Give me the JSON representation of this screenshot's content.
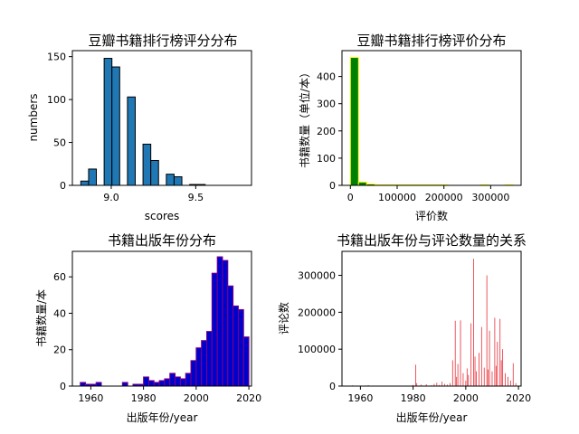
{
  "chart_data": [
    {
      "type": "bar",
      "title": "豆瓣书籍排行榜评分分布",
      "xlabel": "scores",
      "ylabel": "numbers",
      "xlim": [
        8.77,
        9.83
      ],
      "ylim": [
        0,
        157
      ],
      "xticks": [
        9.0,
        9.5
      ],
      "xtick_labels": [
        "9.0",
        "9.5"
      ],
      "yticks": [
        0,
        50,
        100,
        150
      ],
      "ytick_labels": [
        "0",
        "50",
        "100",
        "150"
      ],
      "bar_color": "#1f77b4",
      "edge_color": "#000000",
      "bins": [
        {
          "x0": 8.82,
          "x1": 8.866,
          "value": 5
        },
        {
          "x0": 8.866,
          "x1": 8.912,
          "value": 19
        },
        {
          "x0": 8.958,
          "x1": 9.004,
          "value": 148
        },
        {
          "x0": 9.004,
          "x1": 9.05,
          "value": 138
        },
        {
          "x0": 9.096,
          "x1": 9.142,
          "value": 103
        },
        {
          "x0": 9.188,
          "x1": 9.234,
          "value": 48
        },
        {
          "x0": 9.234,
          "x1": 9.28,
          "value": 29
        },
        {
          "x0": 9.326,
          "x1": 9.372,
          "value": 13
        },
        {
          "x0": 9.372,
          "x1": 9.418,
          "value": 10
        },
        {
          "x0": 9.464,
          "x1": 9.51,
          "value": 1
        },
        {
          "x0": 9.51,
          "x1": 9.556,
          "value": 1
        }
      ]
    },
    {
      "type": "bar",
      "title": "豆瓣书籍排行榜评价分布",
      "xlabel": "评价数",
      "ylabel": "书籍数量（单位/本）",
      "xlim": [
        -18000,
        365000
      ],
      "ylim": [
        0,
        495
      ],
      "xticks": [
        0,
        100000,
        200000,
        300000
      ],
      "xtick_labels": [
        "0",
        "100000",
        "200000",
        "300000"
      ],
      "yticks": [
        0,
        100,
        200,
        300,
        400
      ],
      "ytick_labels": [
        "0",
        "100",
        "200",
        "300",
        "400"
      ],
      "bar_color": "#008000",
      "edge_color": "#ffff00",
      "bins": [
        {
          "x0": 0,
          "x1": 17400,
          "value": 470
        },
        {
          "x0": 17400,
          "x1": 34800,
          "value": 12
        },
        {
          "x0": 34800,
          "x1": 52200,
          "value": 5
        },
        {
          "x0": 52200,
          "x1": 69600,
          "value": 2
        },
        {
          "x0": 69600,
          "x1": 87000,
          "value": 1
        },
        {
          "x0": 87000,
          "x1": 104400,
          "value": 1
        },
        {
          "x0": 104400,
          "x1": 121800,
          "value": 1
        },
        {
          "x0": 121800,
          "x1": 139200,
          "value": 1
        },
        {
          "x0": 139200,
          "x1": 156600,
          "value": 1
        },
        {
          "x0": 156600,
          "x1": 174000,
          "value": 1
        },
        {
          "x0": 174000,
          "x1": 191400,
          "value": 1
        },
        {
          "x0": 191400,
          "x1": 208800,
          "value": 1
        },
        {
          "x0": 208800,
          "x1": 226200,
          "value": 0
        },
        {
          "x0": 226200,
          "x1": 243600,
          "value": 0
        },
        {
          "x0": 243600,
          "x1": 261000,
          "value": 0
        },
        {
          "x0": 261000,
          "x1": 278400,
          "value": 0
        },
        {
          "x0": 278400,
          "x1": 295800,
          "value": 1
        },
        {
          "x0": 295800,
          "x1": 313200,
          "value": 0
        },
        {
          "x0": 313200,
          "x1": 330600,
          "value": 0
        },
        {
          "x0": 330600,
          "x1": 348000,
          "value": 1
        }
      ]
    },
    {
      "type": "bar",
      "title": "书籍出版年份分布",
      "xlabel": "出版年份/year",
      "ylabel": "书籍数量/本",
      "xlim": [
        1953,
        2021
      ],
      "ylim": [
        0,
        74
      ],
      "xticks": [
        1960,
        1980,
        2000,
        2020
      ],
      "xtick_labels": [
        "1960",
        "1980",
        "2000",
        "2020"
      ],
      "yticks": [
        0,
        20,
        40,
        60
      ],
      "ytick_labels": [
        "0",
        "20",
        "40",
        "60"
      ],
      "bar_color": "#0000cd",
      "edge_color": "#800080",
      "bins": [
        {
          "x0": 1956,
          "x1": 1958,
          "value": 2
        },
        {
          "x0": 1958,
          "x1": 1960,
          "value": 1
        },
        {
          "x0": 1960,
          "x1": 1962,
          "value": 1
        },
        {
          "x0": 1962,
          "x1": 1964,
          "value": 2
        },
        {
          "x0": 1972,
          "x1": 1974,
          "value": 2
        },
        {
          "x0": 1976,
          "x1": 1978,
          "value": 1
        },
        {
          "x0": 1978,
          "x1": 1980,
          "value": 1
        },
        {
          "x0": 1980,
          "x1": 1982,
          "value": 5
        },
        {
          "x0": 1982,
          "x1": 1984,
          "value": 3
        },
        {
          "x0": 1984,
          "x1": 1986,
          "value": 2
        },
        {
          "x0": 1986,
          "x1": 1988,
          "value": 3
        },
        {
          "x0": 1988,
          "x1": 1990,
          "value": 4
        },
        {
          "x0": 1990,
          "x1": 1992,
          "value": 7
        },
        {
          "x0": 1992,
          "x1": 1994,
          "value": 5
        },
        {
          "x0": 1994,
          "x1": 1996,
          "value": 4
        },
        {
          "x0": 1996,
          "x1": 1998,
          "value": 7
        },
        {
          "x0": 1998,
          "x1": 2000,
          "value": 14
        },
        {
          "x0": 2000,
          "x1": 2002,
          "value": 21
        },
        {
          "x0": 2002,
          "x1": 2004,
          "value": 25
        },
        {
          "x0": 2004,
          "x1": 2006,
          "value": 30
        },
        {
          "x0": 2006,
          "x1": 2008,
          "value": 62
        },
        {
          "x0": 2008,
          "x1": 2010,
          "value": 71
        },
        {
          "x0": 2010,
          "x1": 2012,
          "value": 69
        },
        {
          "x0": 2012,
          "x1": 2014,
          "value": 55
        },
        {
          "x0": 2014,
          "x1": 2016,
          "value": 44
        },
        {
          "x0": 2016,
          "x1": 2018,
          "value": 42
        },
        {
          "x0": 2018,
          "x1": 2020,
          "value": 27
        }
      ]
    },
    {
      "type": "bar",
      "title": "书籍出版年份与评论数量的关系",
      "xlabel": "出版年份/year",
      "ylabel": "评论数",
      "xlim": [
        1953,
        2021
      ],
      "ylim": [
        0,
        365000
      ],
      "xticks": [
        1960,
        1980,
        2000,
        2020
      ],
      "xtick_labels": [
        "1960",
        "1980",
        "2000",
        "2020"
      ],
      "yticks": [
        0,
        100000,
        200000,
        300000
      ],
      "ytick_labels": [
        "0",
        "100000",
        "200000",
        "300000"
      ],
      "bar_color": "#e8303a",
      "points": [
        {
          "year": 1957,
          "value": 2000
        },
        {
          "year": 1962,
          "value": 1500
        },
        {
          "year": 1963,
          "value": 2500
        },
        {
          "year": 1972,
          "value": 1200
        },
        {
          "year": 1977,
          "value": 800
        },
        {
          "year": 1980,
          "value": 3000
        },
        {
          "year": 1981,
          "value": 58000
        },
        {
          "year": 1981.4,
          "value": 8000
        },
        {
          "year": 1983,
          "value": 4000
        },
        {
          "year": 1985,
          "value": 5000
        },
        {
          "year": 1987,
          "value": 2000
        },
        {
          "year": 1988,
          "value": 6000
        },
        {
          "year": 1989,
          "value": 9000
        },
        {
          "year": 1990,
          "value": 3000
        },
        {
          "year": 1991,
          "value": 12000
        },
        {
          "year": 1992,
          "value": 6000
        },
        {
          "year": 1993,
          "value": 4000
        },
        {
          "year": 1994,
          "value": 8000
        },
        {
          "year": 1995,
          "value": 70000
        },
        {
          "year": 1996,
          "value": 177000
        },
        {
          "year": 1996.5,
          "value": 25000
        },
        {
          "year": 1997,
          "value": 60000
        },
        {
          "year": 1998,
          "value": 178000
        },
        {
          "year": 1999,
          "value": 35000
        },
        {
          "year": 2000,
          "value": 15000
        },
        {
          "year": 2000.5,
          "value": 48000
        },
        {
          "year": 2001,
          "value": 30000
        },
        {
          "year": 2002,
          "value": 170000
        },
        {
          "year": 2003,
          "value": 345000
        },
        {
          "year": 2003.5,
          "value": 80000
        },
        {
          "year": 2004,
          "value": 40000
        },
        {
          "year": 2005,
          "value": 90000
        },
        {
          "year": 2006,
          "value": 160000
        },
        {
          "year": 2007,
          "value": 50000
        },
        {
          "year": 2008,
          "value": 300000
        },
        {
          "year": 2008.5,
          "value": 45000
        },
        {
          "year": 2009,
          "value": 150000
        },
        {
          "year": 2010,
          "value": 40000
        },
        {
          "year": 2011,
          "value": 185000
        },
        {
          "year": 2011.5,
          "value": 55000
        },
        {
          "year": 2012,
          "value": 120000
        },
        {
          "year": 2013,
          "value": 182000
        },
        {
          "year": 2013.5,
          "value": 70000
        },
        {
          "year": 2014,
          "value": 100000
        },
        {
          "year": 2015,
          "value": 35000
        },
        {
          "year": 2016,
          "value": 25000
        },
        {
          "year": 2017,
          "value": 15000
        },
        {
          "year": 2018,
          "value": 62000
        },
        {
          "year": 2019,
          "value": 8000
        }
      ]
    }
  ]
}
